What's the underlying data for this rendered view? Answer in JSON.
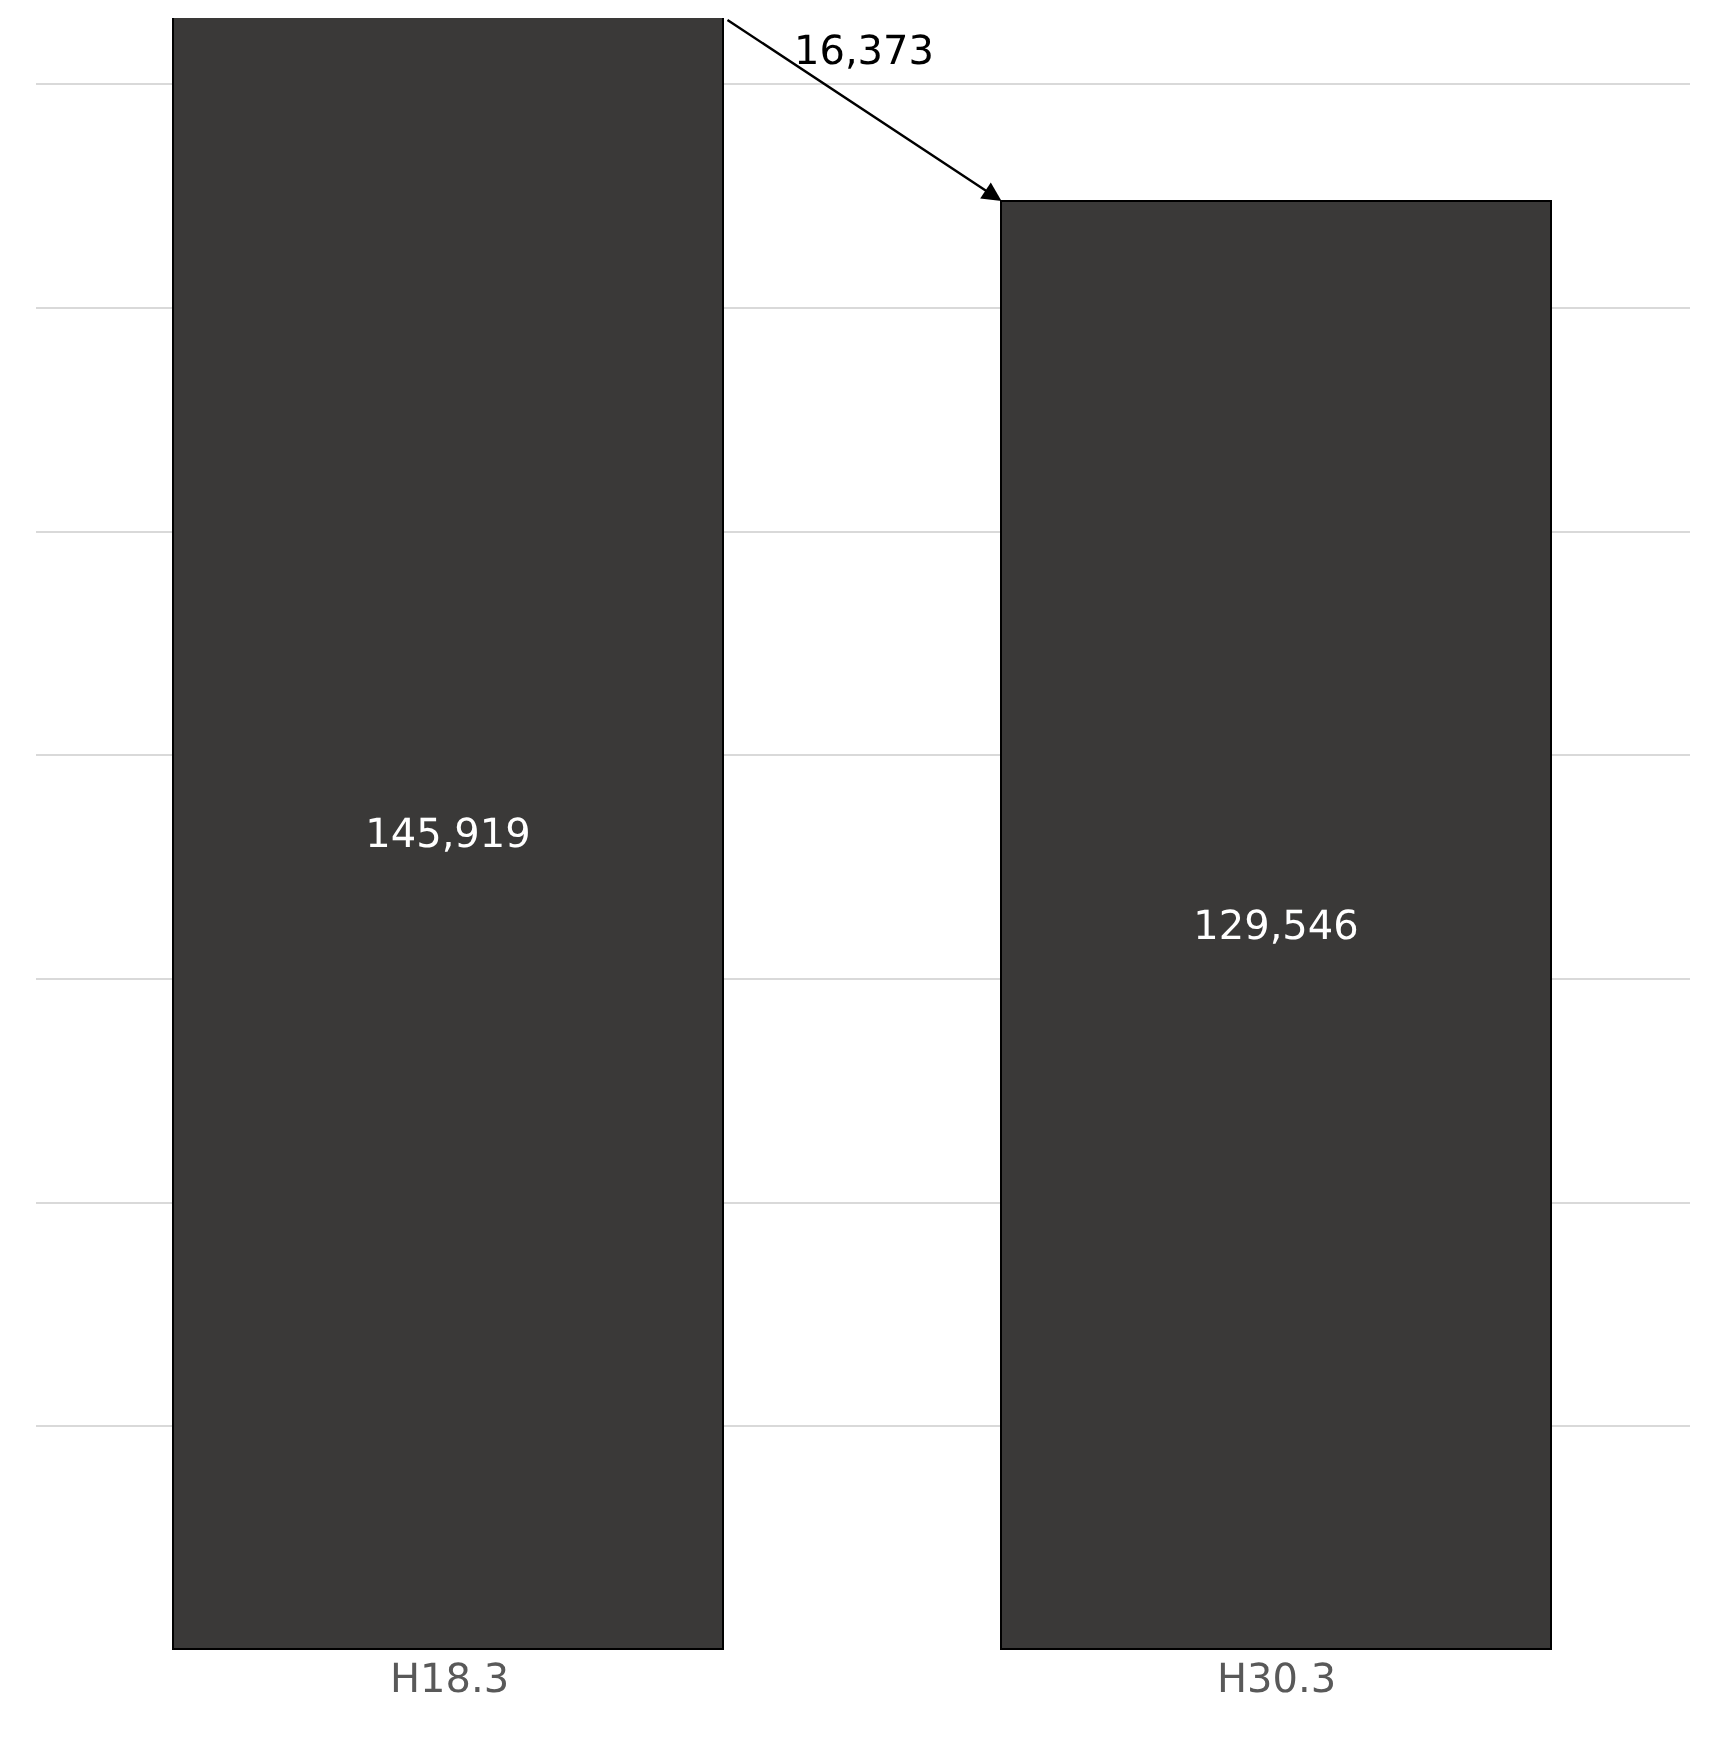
{
  "chart_data": {
    "type": "bar",
    "categories": [
      "H18.3",
      "H30.3"
    ],
    "values": [
      145919,
      129546
    ],
    "value_labels": [
      "145,919",
      "129,546"
    ],
    "color": "#3a3938",
    "tick_labels": "x",
    "grid": "y",
    "annotations": [
      "16,373"
    ]
  }
}
